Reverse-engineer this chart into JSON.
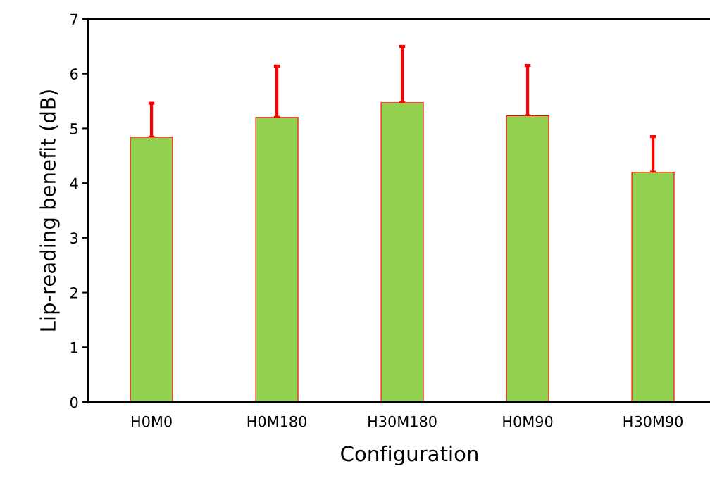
{
  "chart_data": {
    "type": "bar",
    "xlabel": "Configuration",
    "ylabel": "Lip-reading benefit (dB)",
    "categories": [
      "H0M0",
      "H0M180",
      "H30M180",
      "H0M90",
      "H30M90"
    ],
    "values": [
      4.84,
      5.2,
      5.47,
      5.23,
      4.2
    ],
    "errors": [
      [
        4.84,
        5.46
      ],
      [
        5.2,
        6.14
      ],
      [
        5.47,
        6.5
      ],
      [
        5.23,
        6.15
      ],
      [
        4.2,
        4.85
      ]
    ],
    "color": "#92d050",
    "ylim": [
      0,
      7
    ],
    "yticks": [
      0,
      1,
      2,
      3,
      4,
      5,
      6,
      7
    ]
  }
}
